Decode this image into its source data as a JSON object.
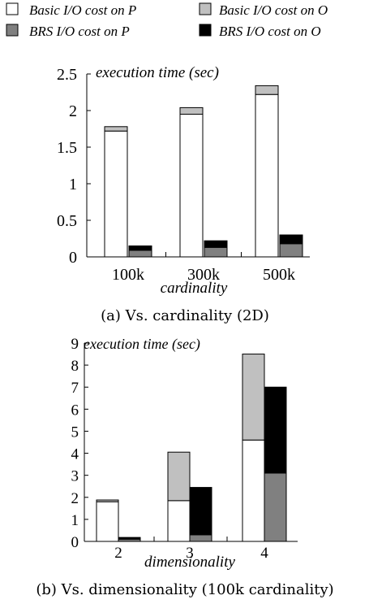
{
  "legend": {
    "items": [
      {
        "label": "Basic I/O cost on P",
        "color": "#ffffff"
      },
      {
        "label": "Basic I/O cost on O",
        "color": "#c0c0c0"
      },
      {
        "label": "BRS I/O cost on P",
        "color": "#808080"
      },
      {
        "label": "BRS I/O cost on O",
        "color": "#000000"
      }
    ]
  },
  "chart_data": [
    {
      "type": "bar",
      "stacked": true,
      "title": "",
      "ylabel": "execution time (sec)",
      "xlabel": "cardinality",
      "caption": "(a) Vs. cardinality (2D)",
      "categories": [
        "100k",
        "300k",
        "500k"
      ],
      "ylim": [
        0,
        2.5
      ],
      "yticks": [
        "0",
        "0.5",
        "1",
        "1.5",
        "2",
        "2.5"
      ],
      "grid": false,
      "legend_position": "top",
      "groups": [
        {
          "name": "Basic",
          "segments": [
            {
              "series": "Basic I/O cost on P",
              "color": "#ffffff",
              "values": [
                1.72,
                1.95,
                2.22
              ]
            },
            {
              "series": "Basic I/O cost on O",
              "color": "#c0c0c0",
              "values": [
                0.06,
                0.09,
                0.12
              ]
            }
          ]
        },
        {
          "name": "BRS",
          "segments": [
            {
              "series": "BRS I/O cost on P",
              "color": "#808080",
              "values": [
                0.09,
                0.13,
                0.18
              ]
            },
            {
              "series": "BRS I/O cost on O",
              "color": "#000000",
              "values": [
                0.06,
                0.09,
                0.12
              ]
            }
          ]
        }
      ]
    },
    {
      "type": "bar",
      "stacked": true,
      "title": "",
      "ylabel": "execution time (sec)",
      "xlabel": "dimensionality",
      "caption": "(b) Vs. dimensionality (100k cardinality)",
      "categories": [
        "2",
        "3",
        "4"
      ],
      "ylim": [
        0,
        9
      ],
      "yticks": [
        "0",
        "1",
        "2",
        "3",
        "4",
        "5",
        "6",
        "7",
        "8",
        "9"
      ],
      "grid": false,
      "legend_position": "top",
      "groups": [
        {
          "name": "Basic",
          "segments": [
            {
              "series": "Basic I/O cost on P",
              "color": "#ffffff",
              "values": [
                1.8,
                1.85,
                4.6
              ]
            },
            {
              "series": "Basic I/O cost on O",
              "color": "#c0c0c0",
              "values": [
                0.08,
                2.2,
                3.9
              ]
            }
          ]
        },
        {
          "name": "BRS",
          "segments": [
            {
              "series": "BRS I/O cost on P",
              "color": "#808080",
              "values": [
                0.1,
                0.3,
                3.1
              ]
            },
            {
              "series": "BRS I/O cost on O",
              "color": "#000000",
              "values": [
                0.08,
                2.15,
                3.9
              ]
            }
          ]
        }
      ]
    }
  ]
}
